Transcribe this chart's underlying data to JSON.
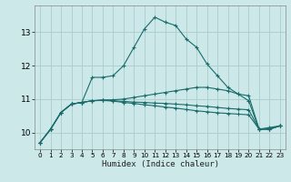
{
  "xlabel": "Humidex (Indice chaleur)",
  "bg_color": "#cce8e8",
  "grid_color": "#aacccc",
  "line_color": "#1a6b6b",
  "xlim": [
    -0.5,
    23.5
  ],
  "ylim": [
    9.5,
    13.8
  ],
  "xticks": [
    0,
    1,
    2,
    3,
    4,
    5,
    6,
    7,
    8,
    9,
    10,
    11,
    12,
    13,
    14,
    15,
    16,
    17,
    18,
    19,
    20,
    21,
    22,
    23
  ],
  "yticks": [
    10,
    11,
    12,
    13
  ],
  "series": [
    [
      9.7,
      10.1,
      10.6,
      10.85,
      10.9,
      11.65,
      11.65,
      11.7,
      12.0,
      12.55,
      13.1,
      13.45,
      13.3,
      13.2,
      12.8,
      12.55,
      12.05,
      11.7,
      11.35,
      11.15,
      10.95,
      10.1,
      10.15,
      10.2
    ],
    [
      9.7,
      10.1,
      10.6,
      10.85,
      10.9,
      10.95,
      10.97,
      10.98,
      11.0,
      11.05,
      11.1,
      11.15,
      11.2,
      11.25,
      11.3,
      11.35,
      11.35,
      11.3,
      11.25,
      11.15,
      11.1,
      10.1,
      10.1,
      10.2
    ],
    [
      9.7,
      10.1,
      10.6,
      10.85,
      10.9,
      10.95,
      10.97,
      10.95,
      10.93,
      10.91,
      10.9,
      10.88,
      10.87,
      10.85,
      10.83,
      10.8,
      10.78,
      10.75,
      10.72,
      10.7,
      10.68,
      10.1,
      10.1,
      10.2
    ],
    [
      9.7,
      10.1,
      10.6,
      10.85,
      10.9,
      10.95,
      10.96,
      10.94,
      10.9,
      10.87,
      10.83,
      10.8,
      10.76,
      10.73,
      10.69,
      10.65,
      10.62,
      10.59,
      10.57,
      10.55,
      10.53,
      10.1,
      10.1,
      10.2
    ]
  ]
}
